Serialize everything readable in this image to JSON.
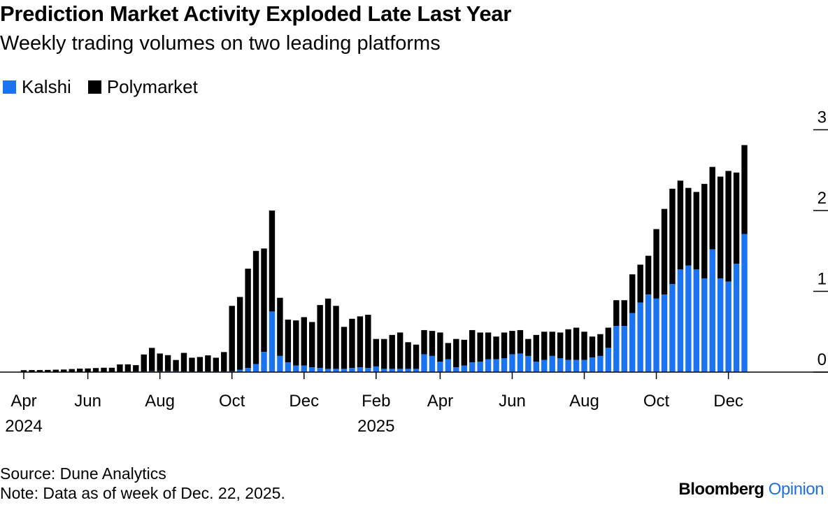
{
  "title": "Prediction Market Activity Exploded Late Last Year",
  "subtitle": "Weekly trading volumes on two leading platforms",
  "source": "Source: Dune Analytics",
  "note": "Note: Data as of week of Dec. 22, 2025.",
  "brand": {
    "name": "Bloomberg",
    "section": "Opinion"
  },
  "colors": {
    "kalshi": "#1a73f0",
    "polymarket": "#000000",
    "axis": "#000000",
    "brand_accent": "#1f6fe5"
  },
  "chart_data": {
    "type": "bar",
    "stacked": true,
    "title": "Prediction Market Activity Exploded Late Last Year",
    "subtitle": "Weekly trading volumes on two leading platforms",
    "xlabel": "",
    "ylabel": "",
    "ylim": [
      0,
      3
    ],
    "yticks": [
      "0",
      "1",
      "2",
      "3"
    ],
    "ytick_side": "right",
    "grid": false,
    "legend": {
      "position": "top-left",
      "entries": [
        "Kalshi",
        "Polymarket"
      ]
    },
    "x_tick_labels": [
      {
        "label": "Apr",
        "year": "2024",
        "week_index": 0
      },
      {
        "label": "Jun",
        "year": "",
        "week_index": 8
      },
      {
        "label": "Aug",
        "year": "",
        "week_index": 17
      },
      {
        "label": "Oct",
        "year": "",
        "week_index": 26
      },
      {
        "label": "Dec",
        "year": "",
        "week_index": 35
      },
      {
        "label": "Feb",
        "year": "2025",
        "week_index": 44
      },
      {
        "label": "Apr",
        "year": "",
        "week_index": 52
      },
      {
        "label": "Jun",
        "year": "",
        "week_index": 61
      },
      {
        "label": "Aug",
        "year": "",
        "week_index": 70
      },
      {
        "label": "Oct",
        "year": "",
        "week_index": 79
      },
      {
        "label": "Dec",
        "year": "",
        "week_index": 88
      }
    ],
    "series": [
      {
        "name": "Kalshi",
        "values": [
          0.002,
          0.002,
          0.002,
          0.002,
          0.002,
          0.002,
          0.003,
          0.003,
          0.003,
          0.004,
          0.004,
          0.004,
          0.005,
          0.006,
          0.006,
          0.008,
          0.01,
          0.01,
          0.01,
          0.01,
          0.008,
          0.008,
          0.007,
          0.007,
          0.008,
          0.008,
          0.01,
          0.03,
          0.05,
          0.1,
          0.25,
          0.75,
          0.2,
          0.12,
          0.08,
          0.08,
          0.06,
          0.05,
          0.04,
          0.04,
          0.04,
          0.05,
          0.06,
          0.05,
          0.07,
          0.04,
          0.04,
          0.04,
          0.04,
          0.04,
          0.22,
          0.2,
          0.13,
          0.16,
          0.06,
          0.08,
          0.12,
          0.13,
          0.16,
          0.16,
          0.17,
          0.22,
          0.23,
          0.2,
          0.13,
          0.15,
          0.2,
          0.17,
          0.15,
          0.15,
          0.15,
          0.18,
          0.2,
          0.3,
          0.57,
          0.57,
          0.73,
          0.86,
          0.96,
          0.91,
          0.96,
          1.09,
          1.27,
          1.32,
          1.27,
          1.16,
          1.52,
          1.16,
          1.12,
          1.34,
          1.71
        ]
      },
      {
        "name": "Polymarket",
        "values": [
          0.022,
          0.023,
          0.023,
          0.025,
          0.028,
          0.03,
          0.035,
          0.04,
          0.042,
          0.046,
          0.05,
          0.05,
          0.09,
          0.09,
          0.08,
          0.21,
          0.29,
          0.22,
          0.2,
          0.14,
          0.23,
          0.17,
          0.18,
          0.2,
          0.17,
          0.24,
          0.81,
          0.9,
          1.23,
          1.4,
          1.28,
          1.25,
          0.72,
          0.53,
          0.56,
          0.6,
          0.56,
          0.78,
          0.87,
          0.78,
          0.52,
          0.61,
          0.63,
          0.66,
          0.34,
          0.37,
          0.42,
          0.45,
          0.33,
          0.3,
          0.3,
          0.31,
          0.36,
          0.2,
          0.35,
          0.32,
          0.4,
          0.36,
          0.33,
          0.28,
          0.32,
          0.29,
          0.29,
          0.21,
          0.33,
          0.35,
          0.3,
          0.32,
          0.38,
          0.4,
          0.35,
          0.26,
          0.27,
          0.25,
          0.32,
          0.32,
          0.48,
          0.47,
          0.48,
          0.86,
          1.06,
          1.18,
          1.1,
          0.96,
          0.96,
          1.17,
          1.02,
          1.26,
          1.37,
          1.13,
          1.1
        ]
      }
    ]
  }
}
